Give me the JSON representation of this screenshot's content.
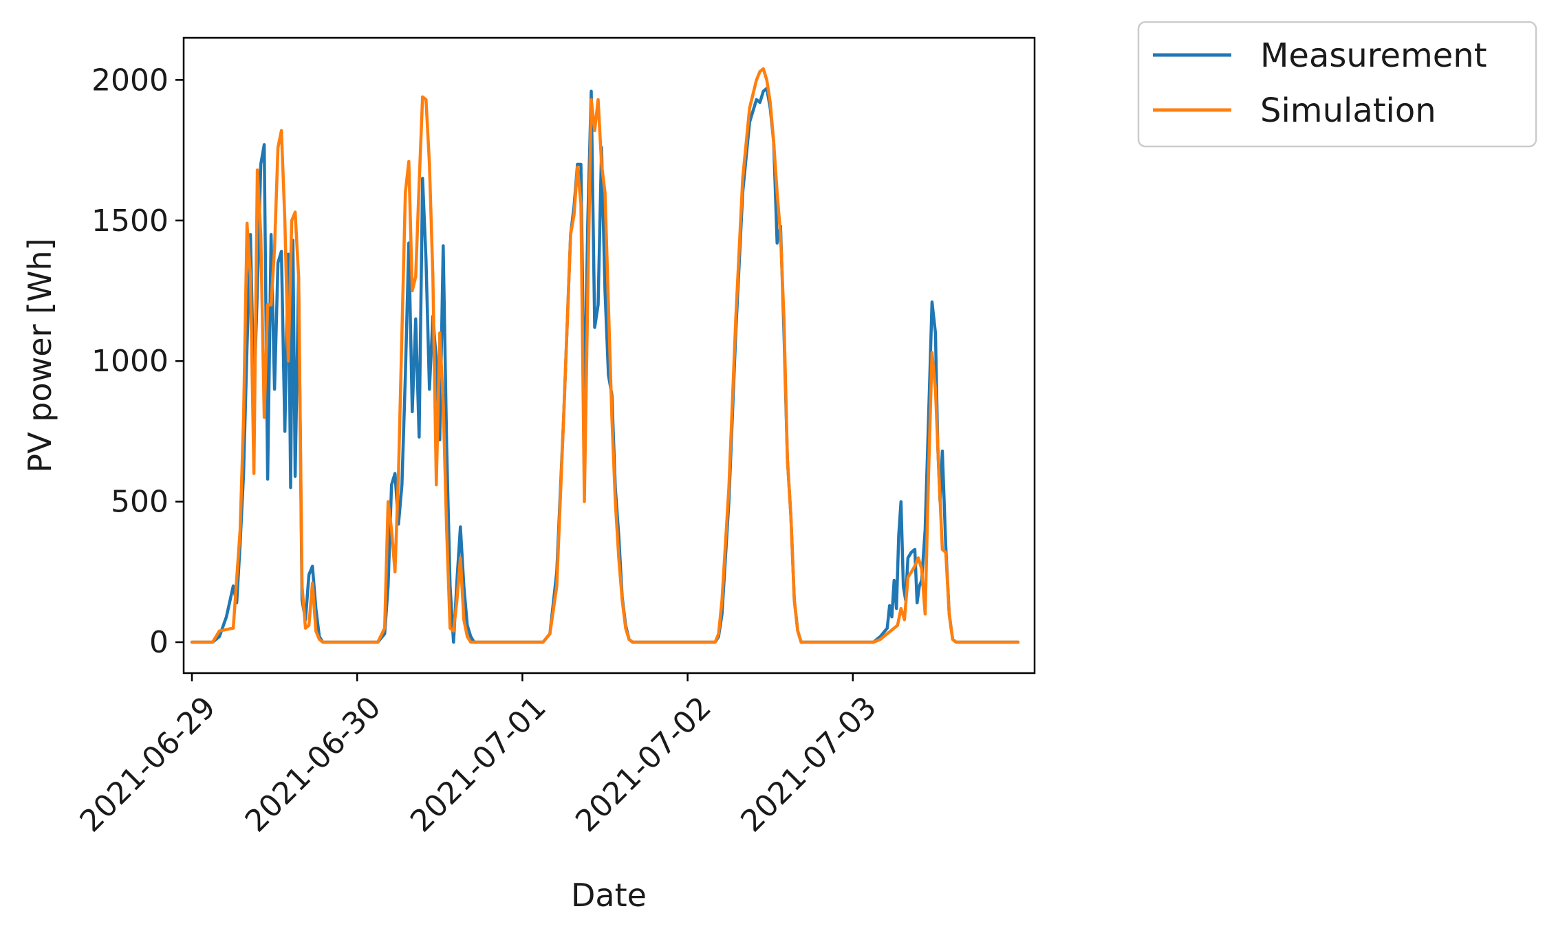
{
  "chart_data": {
    "type": "line",
    "title": "",
    "xlabel": "Date",
    "ylabel": "PV power [Wh]",
    "x_unit": "date",
    "xlim": [
      "2021-06-28T22:48",
      "2021-07-04T02:24"
    ],
    "ylim": [
      -110,
      2150
    ],
    "yticks": [
      0,
      500,
      1000,
      1500,
      2000
    ],
    "xticks": [
      "2021-06-29",
      "2021-06-30",
      "2021-07-01",
      "2021-07-02",
      "2021-07-03"
    ],
    "grid": false,
    "legend_position": "outside-top-right",
    "series": [
      {
        "name": "Measurement",
        "color": "#1f77b4",
        "points": [
          [
            "2021-06-29T00:00",
            0
          ],
          [
            "2021-06-29T03:00",
            0
          ],
          [
            "2021-06-29T04:00",
            20
          ],
          [
            "2021-06-29T05:00",
            90
          ],
          [
            "2021-06-29T06:00",
            200
          ],
          [
            "2021-06-29T06:30",
            140
          ],
          [
            "2021-06-29T07:00",
            350
          ],
          [
            "2021-06-29T07:30",
            600
          ],
          [
            "2021-06-29T08:00",
            1050
          ],
          [
            "2021-06-29T08:30",
            1450
          ],
          [
            "2021-06-29T09:00",
            880
          ],
          [
            "2021-06-29T09:30",
            1250
          ],
          [
            "2021-06-29T10:00",
            1700
          ],
          [
            "2021-06-29T10:30",
            1770
          ],
          [
            "2021-06-29T11:00",
            580
          ],
          [
            "2021-06-29T11:30",
            1450
          ],
          [
            "2021-06-29T12:00",
            900
          ],
          [
            "2021-06-29T12:30",
            1350
          ],
          [
            "2021-06-29T13:00",
            1390
          ],
          [
            "2021-06-29T13:30",
            750
          ],
          [
            "2021-06-29T14:00",
            1380
          ],
          [
            "2021-06-29T14:20",
            550
          ],
          [
            "2021-06-29T14:40",
            1430
          ],
          [
            "2021-06-29T15:00",
            590
          ],
          [
            "2021-06-29T15:30",
            1300
          ],
          [
            "2021-06-29T16:00",
            150
          ],
          [
            "2021-06-29T16:30",
            80
          ],
          [
            "2021-06-29T17:00",
            240
          ],
          [
            "2021-06-29T17:30",
            270
          ],
          [
            "2021-06-29T18:00",
            120
          ],
          [
            "2021-06-29T18:30",
            20
          ],
          [
            "2021-06-29T19:00",
            0
          ],
          [
            "2021-06-30T03:00",
            0
          ],
          [
            "2021-06-30T04:00",
            30
          ],
          [
            "2021-06-30T04:30",
            200
          ],
          [
            "2021-06-30T05:00",
            560
          ],
          [
            "2021-06-30T05:30",
            600
          ],
          [
            "2021-06-30T06:00",
            420
          ],
          [
            "2021-06-30T06:30",
            560
          ],
          [
            "2021-06-30T07:00",
            950
          ],
          [
            "2021-06-30T07:30",
            1420
          ],
          [
            "2021-06-30T08:00",
            820
          ],
          [
            "2021-06-30T08:30",
            1150
          ],
          [
            "2021-06-30T09:00",
            730
          ],
          [
            "2021-06-30T09:30",
            1650
          ],
          [
            "2021-06-30T10:00",
            1360
          ],
          [
            "2021-06-30T10:30",
            900
          ],
          [
            "2021-06-30T11:00",
            1160
          ],
          [
            "2021-06-30T11:30",
            1000
          ],
          [
            "2021-06-30T12:00",
            720
          ],
          [
            "2021-06-30T12:30",
            1410
          ],
          [
            "2021-06-30T13:00",
            700
          ],
          [
            "2021-06-30T13:30",
            200
          ],
          [
            "2021-06-30T14:00",
            0
          ],
          [
            "2021-06-30T14:30",
            220
          ],
          [
            "2021-06-30T15:00",
            410
          ],
          [
            "2021-06-30T15:30",
            200
          ],
          [
            "2021-06-30T16:00",
            60
          ],
          [
            "2021-06-30T16:30",
            20
          ],
          [
            "2021-06-30T17:00",
            0
          ],
          [
            "2021-07-01T03:00",
            0
          ],
          [
            "2021-07-01T04:00",
            30
          ],
          [
            "2021-07-01T05:00",
            250
          ],
          [
            "2021-07-01T06:00",
            800
          ],
          [
            "2021-07-01T07:00",
            1450
          ],
          [
            "2021-07-01T07:30",
            1550
          ],
          [
            "2021-07-01T08:00",
            1700
          ],
          [
            "2021-07-01T08:30",
            1700
          ],
          [
            "2021-07-01T09:00",
            800
          ],
          [
            "2021-07-01T09:30",
            1500
          ],
          [
            "2021-07-01T10:00",
            1960
          ],
          [
            "2021-07-01T10:30",
            1120
          ],
          [
            "2021-07-01T11:00",
            1200
          ],
          [
            "2021-07-01T11:30",
            1760
          ],
          [
            "2021-07-01T12:00",
            1250
          ],
          [
            "2021-07-01T12:30",
            950
          ],
          [
            "2021-07-01T13:00",
            880
          ],
          [
            "2021-07-01T13:30",
            550
          ],
          [
            "2021-07-01T14:00",
            380
          ],
          [
            "2021-07-01T14:30",
            160
          ],
          [
            "2021-07-01T15:00",
            60
          ],
          [
            "2021-07-01T15:30",
            10
          ],
          [
            "2021-07-01T16:00",
            0
          ],
          [
            "2021-07-02T04:00",
            0
          ],
          [
            "2021-07-02T04:30",
            20
          ],
          [
            "2021-07-02T05:00",
            100
          ],
          [
            "2021-07-02T06:00",
            500
          ],
          [
            "2021-07-02T07:00",
            1100
          ],
          [
            "2021-07-02T08:00",
            1600
          ],
          [
            "2021-07-02T09:00",
            1850
          ],
          [
            "2021-07-02T10:00",
            1930
          ],
          [
            "2021-07-02T10:30",
            1920
          ],
          [
            "2021-07-02T11:00",
            1960
          ],
          [
            "2021-07-02T11:30",
            1970
          ],
          [
            "2021-07-02T12:00",
            1900
          ],
          [
            "2021-07-02T12:30",
            1780
          ],
          [
            "2021-07-02T13:00",
            1420
          ],
          [
            "2021-07-02T13:30",
            1480
          ],
          [
            "2021-07-02T14:00",
            1100
          ],
          [
            "2021-07-02T14:30",
            650
          ],
          [
            "2021-07-02T15:00",
            450
          ],
          [
            "2021-07-02T15:30",
            150
          ],
          [
            "2021-07-02T16:00",
            40
          ],
          [
            "2021-07-02T16:30",
            0
          ],
          [
            "2021-07-03T03:00",
            0
          ],
          [
            "2021-07-03T04:00",
            20
          ],
          [
            "2021-07-03T05:00",
            50
          ],
          [
            "2021-07-03T05:20",
            130
          ],
          [
            "2021-07-03T05:40",
            90
          ],
          [
            "2021-07-03T06:00",
            220
          ],
          [
            "2021-07-03T06:20",
            120
          ],
          [
            "2021-07-03T06:40",
            380
          ],
          [
            "2021-07-03T07:00",
            500
          ],
          [
            "2021-07-03T07:20",
            200
          ],
          [
            "2021-07-03T07:40",
            150
          ],
          [
            "2021-07-03T08:00",
            300
          ],
          [
            "2021-07-03T08:30",
            320
          ],
          [
            "2021-07-03T09:00",
            330
          ],
          [
            "2021-07-03T09:20",
            140
          ],
          [
            "2021-07-03T09:40",
            200
          ],
          [
            "2021-07-03T10:00",
            220
          ],
          [
            "2021-07-03T10:30",
            400
          ],
          [
            "2021-07-03T11:00",
            800
          ],
          [
            "2021-07-03T11:30",
            1210
          ],
          [
            "2021-07-03T12:00",
            1100
          ],
          [
            "2021-07-03T12:20",
            700
          ],
          [
            "2021-07-03T12:40",
            500
          ],
          [
            "2021-07-03T13:00",
            680
          ],
          [
            "2021-07-03T13:30",
            340
          ],
          [
            "2021-07-03T14:00",
            100
          ],
          [
            "2021-07-03T14:30",
            10
          ],
          [
            "2021-07-03T15:00",
            0
          ],
          [
            "2021-07-04T00:00",
            0
          ]
        ]
      },
      {
        "name": "Simulation",
        "color": "#ff7f0e",
        "points": [
          [
            "2021-06-29T00:00",
            0
          ],
          [
            "2021-06-29T03:00",
            0
          ],
          [
            "2021-06-29T04:00",
            40
          ],
          [
            "2021-06-29T06:00",
            50
          ],
          [
            "2021-06-29T07:00",
            400
          ],
          [
            "2021-06-29T07:30",
            800
          ],
          [
            "2021-06-29T08:00",
            1490
          ],
          [
            "2021-06-29T08:30",
            1300
          ],
          [
            "2021-06-29T09:00",
            600
          ],
          [
            "2021-06-29T09:30",
            1680
          ],
          [
            "2021-06-29T10:00",
            1450
          ],
          [
            "2021-06-29T10:30",
            800
          ],
          [
            "2021-06-29T11:00",
            1200
          ],
          [
            "2021-06-29T11:30",
            1200
          ],
          [
            "2021-06-29T12:00",
            1400
          ],
          [
            "2021-06-29T12:30",
            1760
          ],
          [
            "2021-06-29T13:00",
            1820
          ],
          [
            "2021-06-29T13:30",
            1500
          ],
          [
            "2021-06-29T14:00",
            1000
          ],
          [
            "2021-06-29T14:30",
            1500
          ],
          [
            "2021-06-29T15:00",
            1530
          ],
          [
            "2021-06-29T15:30",
            1300
          ],
          [
            "2021-06-29T16:00",
            200
          ],
          [
            "2021-06-29T16:30",
            50
          ],
          [
            "2021-06-29T17:00",
            60
          ],
          [
            "2021-06-29T17:30",
            210
          ],
          [
            "2021-06-29T18:00",
            40
          ],
          [
            "2021-06-29T18:30",
            10
          ],
          [
            "2021-06-29T19:00",
            0
          ],
          [
            "2021-06-30T03:00",
            0
          ],
          [
            "2021-06-30T04:00",
            50
          ],
          [
            "2021-06-30T04:30",
            500
          ],
          [
            "2021-06-30T05:00",
            400
          ],
          [
            "2021-06-30T05:30",
            250
          ],
          [
            "2021-06-30T06:00",
            600
          ],
          [
            "2021-06-30T06:30",
            1100
          ],
          [
            "2021-06-30T07:00",
            1600
          ],
          [
            "2021-06-30T07:30",
            1710
          ],
          [
            "2021-06-30T08:00",
            1250
          ],
          [
            "2021-06-30T08:30",
            1300
          ],
          [
            "2021-06-30T09:00",
            1630
          ],
          [
            "2021-06-30T09:30",
            1940
          ],
          [
            "2021-06-30T10:00",
            1930
          ],
          [
            "2021-06-30T10:30",
            1700
          ],
          [
            "2021-06-30T11:00",
            1300
          ],
          [
            "2021-06-30T11:30",
            560
          ],
          [
            "2021-06-30T12:00",
            1100
          ],
          [
            "2021-06-30T12:30",
            850
          ],
          [
            "2021-06-30T13:00",
            400
          ],
          [
            "2021-06-30T13:30",
            50
          ],
          [
            "2021-06-30T14:00",
            40
          ],
          [
            "2021-06-30T14:30",
            150
          ],
          [
            "2021-06-30T15:00",
            300
          ],
          [
            "2021-06-30T15:30",
            80
          ],
          [
            "2021-06-30T16:00",
            20
          ],
          [
            "2021-06-30T16:30",
            0
          ],
          [
            "2021-07-01T03:00",
            0
          ],
          [
            "2021-07-01T04:00",
            30
          ],
          [
            "2021-07-01T05:00",
            200
          ],
          [
            "2021-07-01T06:00",
            800
          ],
          [
            "2021-07-01T07:00",
            1450
          ],
          [
            "2021-07-01T07:30",
            1520
          ],
          [
            "2021-07-01T08:00",
            1690
          ],
          [
            "2021-07-01T08:30",
            1560
          ],
          [
            "2021-07-01T09:00",
            500
          ],
          [
            "2021-07-01T09:30",
            1250
          ],
          [
            "2021-07-01T10:00",
            1930
          ],
          [
            "2021-07-01T10:30",
            1820
          ],
          [
            "2021-07-01T11:00",
            1930
          ],
          [
            "2021-07-01T11:30",
            1700
          ],
          [
            "2021-07-01T12:00",
            1600
          ],
          [
            "2021-07-01T12:30",
            1200
          ],
          [
            "2021-07-01T13:00",
            800
          ],
          [
            "2021-07-01T13:30",
            500
          ],
          [
            "2021-07-01T14:00",
            300
          ],
          [
            "2021-07-01T14:30",
            150
          ],
          [
            "2021-07-01T15:00",
            50
          ],
          [
            "2021-07-01T15:30",
            10
          ],
          [
            "2021-07-01T16:00",
            0
          ],
          [
            "2021-07-02T04:00",
            0
          ],
          [
            "2021-07-02T04:30",
            30
          ],
          [
            "2021-07-02T05:00",
            150
          ],
          [
            "2021-07-02T06:00",
            550
          ],
          [
            "2021-07-02T07:00",
            1150
          ],
          [
            "2021-07-02T08:00",
            1650
          ],
          [
            "2021-07-02T09:00",
            1900
          ],
          [
            "2021-07-02T10:00",
            2000
          ],
          [
            "2021-07-02T10:30",
            2030
          ],
          [
            "2021-07-02T11:00",
            2040
          ],
          [
            "2021-07-02T11:30",
            2000
          ],
          [
            "2021-07-02T12:00",
            1920
          ],
          [
            "2021-07-02T12:30",
            1780
          ],
          [
            "2021-07-02T13:00",
            1600
          ],
          [
            "2021-07-02T13:30",
            1450
          ],
          [
            "2021-07-02T14:00",
            1150
          ],
          [
            "2021-07-02T14:30",
            650
          ],
          [
            "2021-07-02T15:00",
            450
          ],
          [
            "2021-07-02T15:30",
            150
          ],
          [
            "2021-07-02T16:00",
            40
          ],
          [
            "2021-07-02T16:30",
            0
          ],
          [
            "2021-07-03T03:00",
            0
          ],
          [
            "2021-07-03T04:00",
            10
          ],
          [
            "2021-07-03T05:00",
            30
          ],
          [
            "2021-07-03T06:00",
            50
          ],
          [
            "2021-07-03T06:30",
            60
          ],
          [
            "2021-07-03T07:00",
            120
          ],
          [
            "2021-07-03T07:30",
            80
          ],
          [
            "2021-07-03T08:00",
            230
          ],
          [
            "2021-07-03T08:30",
            250
          ],
          [
            "2021-07-03T09:00",
            270
          ],
          [
            "2021-07-03T09:30",
            300
          ],
          [
            "2021-07-03T10:00",
            260
          ],
          [
            "2021-07-03T10:30",
            100
          ],
          [
            "2021-07-03T11:00",
            600
          ],
          [
            "2021-07-03T11:30",
            1030
          ],
          [
            "2021-07-03T12:00",
            900
          ],
          [
            "2021-07-03T12:30",
            600
          ],
          [
            "2021-07-03T13:00",
            330
          ],
          [
            "2021-07-03T13:30",
            320
          ],
          [
            "2021-07-03T14:00",
            100
          ],
          [
            "2021-07-03T14:30",
            10
          ],
          [
            "2021-07-03T15:00",
            0
          ],
          [
            "2021-07-04T00:00",
            0
          ]
        ]
      }
    ]
  }
}
